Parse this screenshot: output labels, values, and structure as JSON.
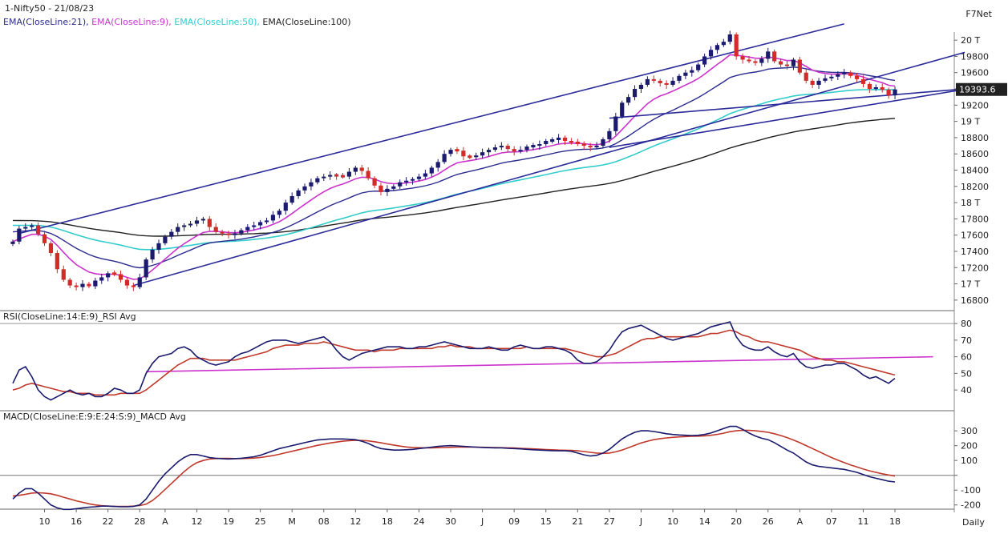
{
  "header": {
    "title": "1-Nifty50 - 21/08/23",
    "brand": "F7Net",
    "ema_legend": [
      {
        "label": "EMA(CloseLine:21),",
        "color": "#2b2b8f"
      },
      {
        "label": "EMA(CloseLine:9),",
        "color": "#cc33cc"
      },
      {
        "label": "EMA(CloseLine:50),",
        "color": "#33cccc"
      },
      {
        "label": "EMA(CloseLine:100)",
        "color": "#222222"
      }
    ],
    "current_price": "19393.6",
    "footer_label": "Daily"
  },
  "colors": {
    "up": "#1a1a6e",
    "down": "#d42a2a",
    "trend": "#2b2b9a",
    "rsi": "#1a1a6e",
    "avg": "#c0392b",
    "rsi_ref": "#cc33cc"
  },
  "chart_data": [
    {
      "type": "candlestick",
      "ylim": [
        16700,
        20100
      ],
      "y_ticks": [
        20000,
        19800,
        19600,
        19400,
        19200,
        19000,
        18800,
        18600,
        18400,
        18200,
        18000,
        17800,
        17600,
        17400,
        17200,
        17000,
        16800
      ],
      "y_tick_labels": [
        "20 T",
        "19800",
        "19600",
        "",
        "19200",
        "19 T",
        "18800",
        "18600",
        "18400",
        "18200",
        "18 T",
        "17800",
        "17600",
        "17400",
        "17200",
        "17 T",
        "16800"
      ],
      "x_tick_labels": [
        {
          "label": "10",
          "index": 5
        },
        {
          "label": "16",
          "index": 10
        },
        {
          "label": "22",
          "index": 15
        },
        {
          "label": "28",
          "index": 20
        },
        {
          "label": "A",
          "index": 24
        },
        {
          "label": "12",
          "index": 29
        },
        {
          "label": "19",
          "index": 34
        },
        {
          "label": "25",
          "index": 39
        },
        {
          "label": "M",
          "index": 44
        },
        {
          "label": "08",
          "index": 49
        },
        {
          "label": "12",
          "index": 54
        },
        {
          "label": "18",
          "index": 59
        },
        {
          "label": "24",
          "index": 64
        },
        {
          "label": "30",
          "index": 69
        },
        {
          "label": "J",
          "index": 74
        },
        {
          "label": "09",
          "index": 79
        },
        {
          "label": "15",
          "index": 84
        },
        {
          "label": "21",
          "index": 89
        },
        {
          "label": "27",
          "index": 94
        },
        {
          "label": "J",
          "index": 99
        },
        {
          "label": "10",
          "index": 104
        },
        {
          "label": "14",
          "index": 109
        },
        {
          "label": "20",
          "index": 114
        },
        {
          "label": "26",
          "index": 119
        },
        {
          "label": "A",
          "index": 124
        },
        {
          "label": "07",
          "index": 129
        },
        {
          "label": "11",
          "index": 134
        },
        {
          "label": "18",
          "index": 139
        }
      ],
      "close": [
        17520,
        17680,
        17700,
        17720,
        17610,
        17500,
        17380,
        17180,
        17050,
        16980,
        16960,
        17000,
        16970,
        17040,
        17080,
        17130,
        17120,
        17050,
        16980,
        16960,
        17080,
        17300,
        17420,
        17500,
        17580,
        17640,
        17700,
        17720,
        17740,
        17780,
        17800,
        17700,
        17640,
        17620,
        17600,
        17620,
        17660,
        17700,
        17720,
        17760,
        17780,
        17850,
        17900,
        18000,
        18080,
        18150,
        18200,
        18250,
        18300,
        18320,
        18340,
        18330,
        18320,
        18380,
        18430,
        18390,
        18300,
        18210,
        18130,
        18170,
        18200,
        18250,
        18270,
        18290,
        18320,
        18360,
        18430,
        18500,
        18600,
        18650,
        18640,
        18570,
        18560,
        18580,
        18620,
        18650,
        18680,
        18700,
        18660,
        18630,
        18650,
        18690,
        18700,
        18720,
        18760,
        18770,
        18800,
        18760,
        18740,
        18730,
        18700,
        18680,
        18700,
        18780,
        18880,
        19060,
        19230,
        19300,
        19400,
        19450,
        19520,
        19500,
        19470,
        19450,
        19500,
        19560,
        19600,
        19630,
        19700,
        19800,
        19880,
        19940,
        19980,
        20070,
        19800,
        19760,
        19740,
        19720,
        19770,
        19860,
        19740,
        19700,
        19680,
        19760,
        19600,
        19500,
        19450,
        19500,
        19530,
        19550,
        19580,
        19600,
        19560,
        19520,
        19460,
        19400,
        19420,
        19390,
        19320,
        19393
      ]
    },
    {
      "type": "line",
      "title": "RSI(CloseLine:14:E:9)_RSI Avg",
      "ylim": [
        28,
        82
      ],
      "y_ticks": [
        40,
        50,
        60,
        70,
        80
      ],
      "series": [
        {
          "name": "RSI",
          "values": [
            44,
            52,
            54,
            48,
            40,
            36,
            34,
            36,
            38,
            40,
            38,
            37,
            38,
            36,
            36,
            38,
            41,
            40,
            38,
            38,
            40,
            50,
            56,
            60,
            61,
            62,
            65,
            66,
            64,
            60,
            58,
            56,
            55,
            56,
            57,
            60,
            62,
            63,
            65,
            67,
            69,
            70,
            70,
            70,
            69,
            68,
            69,
            70,
            71,
            72,
            69,
            64,
            60,
            58,
            60,
            62,
            63,
            64,
            65,
            66,
            66,
            66,
            65,
            65,
            66,
            66,
            67,
            68,
            69,
            68,
            67,
            66,
            65,
            65,
            65,
            66,
            65,
            64,
            64,
            66,
            67,
            66,
            65,
            65,
            66,
            66,
            65,
            64,
            62,
            58,
            56,
            56,
            57,
            60,
            64,
            70,
            75,
            77,
            78,
            79,
            77,
            75,
            73,
            71,
            70,
            71,
            72,
            73,
            74,
            76,
            78,
            79,
            80,
            81,
            72,
            67,
            65,
            64,
            64,
            66,
            63,
            61,
            60,
            62,
            57,
            54,
            53,
            54,
            55,
            55,
            56,
            56,
            54,
            52,
            49,
            47,
            48,
            46,
            44,
            47
          ]
        },
        {
          "name": "Avg",
          "values": [
            40,
            41,
            43,
            44,
            43,
            42,
            41,
            40,
            39,
            39,
            38,
            38,
            38,
            37,
            37,
            37,
            37,
            38,
            38,
            38,
            38,
            40,
            43,
            46,
            49,
            52,
            55,
            57,
            59,
            59,
            59,
            58,
            58,
            58,
            58,
            58,
            59,
            60,
            61,
            62,
            63,
            65,
            66,
            67,
            67,
            67,
            68,
            68,
            68,
            69,
            68,
            67,
            66,
            65,
            64,
            64,
            64,
            63,
            64,
            64,
            64,
            65,
            65,
            65,
            65,
            65,
            65,
            66,
            66,
            67,
            66,
            66,
            66,
            65,
            65,
            65,
            65,
            65,
            65,
            65,
            65,
            66,
            65,
            65,
            65,
            65,
            65,
            65,
            64,
            63,
            62,
            61,
            60,
            60,
            61,
            62,
            64,
            66,
            68,
            70,
            71,
            71,
            72,
            72,
            72,
            72,
            72,
            72,
            72,
            73,
            74,
            74,
            75,
            76,
            75,
            73,
            72,
            70,
            69,
            69,
            68,
            67,
            66,
            65,
            64,
            62,
            60,
            59,
            58,
            58,
            57,
            57,
            56,
            55,
            54,
            53,
            52,
            51,
            50,
            49
          ]
        }
      ],
      "ref_line": {
        "from_index": 21,
        "from_value": 51,
        "to_index": 145,
        "to_value": 60
      }
    },
    {
      "type": "line",
      "title": "MACD(CloseLine:E:9:E:24:S:9)_MACD Avg",
      "ylim": [
        -250,
        360
      ],
      "y_ticks": [
        -200,
        -100,
        0,
        100,
        200,
        300
      ],
      "y_tick_labels": [
        "-200",
        "-100",
        "",
        "100",
        "200",
        "300"
      ],
      "zero_line": 0,
      "series": [
        {
          "name": "MACD",
          "values": [
            -160,
            -120,
            -90,
            -90,
            -120,
            -160,
            -200,
            -220,
            -230,
            -230,
            -225,
            -220,
            -215,
            -212,
            -208,
            -208,
            -210,
            -212,
            -212,
            -210,
            -200,
            -160,
            -100,
            -40,
            10,
            50,
            90,
            120,
            140,
            140,
            130,
            120,
            115,
            112,
            110,
            112,
            115,
            120,
            125,
            135,
            150,
            165,
            180,
            190,
            200,
            210,
            220,
            230,
            238,
            242,
            245,
            245,
            245,
            243,
            240,
            230,
            215,
            195,
            180,
            175,
            170,
            170,
            172,
            175,
            180,
            185,
            190,
            195,
            198,
            200,
            198,
            195,
            192,
            190,
            188,
            186,
            185,
            185,
            182,
            180,
            178,
            175,
            172,
            170,
            168,
            166,
            165,
            165,
            162,
            150,
            138,
            130,
            135,
            150,
            175,
            210,
            245,
            270,
            290,
            300,
            300,
            295,
            288,
            280,
            275,
            272,
            270,
            268,
            270,
            275,
            285,
            300,
            315,
            330,
            330,
            310,
            285,
            265,
            250,
            240,
            220,
            195,
            170,
            150,
            120,
            90,
            70,
            60,
            55,
            50,
            45,
            40,
            30,
            20,
            5,
            -10,
            -20,
            -30,
            -40,
            -45
          ]
        },
        {
          "name": "Avg",
          "values": [
            -140,
            -135,
            -128,
            -120,
            -118,
            -120,
            -125,
            -135,
            -148,
            -160,
            -172,
            -182,
            -192,
            -200,
            -205,
            -208,
            -210,
            -210,
            -210,
            -208,
            -204,
            -195,
            -170,
            -135,
            -95,
            -55,
            -15,
            25,
            60,
            85,
            100,
            110,
            113,
            114,
            114,
            113,
            113,
            114,
            116,
            120,
            126,
            133,
            142,
            152,
            162,
            172,
            182,
            192,
            202,
            210,
            218,
            224,
            230,
            233,
            236,
            235,
            232,
            226,
            219,
            211,
            204,
            197,
            191,
            188,
            186,
            185,
            185,
            186,
            187,
            189,
            190,
            190,
            190,
            190,
            189,
            188,
            187,
            186,
            185,
            184,
            182,
            180,
            178,
            176,
            174,
            172,
            170,
            169,
            168,
            165,
            160,
            155,
            150,
            148,
            150,
            158,
            170,
            186,
            202,
            218,
            230,
            240,
            247,
            252,
            256,
            259,
            261,
            263,
            264,
            266,
            270,
            276,
            284,
            294,
            300,
            304,
            303,
            300,
            296,
            290,
            280,
            268,
            254,
            238,
            220,
            200,
            180,
            160,
            140,
            120,
            102,
            86,
            70,
            56,
            42,
            30,
            20,
            10,
            2,
            -5
          ]
        }
      ]
    }
  ]
}
